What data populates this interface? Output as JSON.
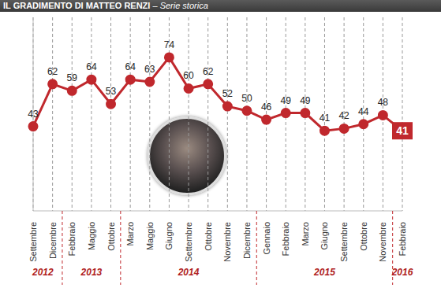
{
  "chart_data": {
    "type": "line",
    "title": "IL GRADIMENTO DI MATTEO RENZI",
    "subtitle": "– Serie storica",
    "categories": [
      "Settembre",
      "Dicembre",
      "Febbraio",
      "Maggio",
      "Ottobre",
      "Marzo",
      "Maggio",
      "Giugno",
      "Settembre",
      "Ottobre",
      "Novembre",
      "Dicembre",
      "Gennaio",
      "Febbraio",
      "Marzo",
      "Giugno",
      "Settembre",
      "Ottobre",
      "Novembre",
      "Febbraio"
    ],
    "values": [
      43,
      62,
      59,
      64,
      53,
      64,
      63,
      74,
      60,
      62,
      52,
      50,
      46,
      49,
      49,
      41,
      42,
      44,
      48,
      41
    ],
    "color": "#c0282d",
    "ylim": [
      5,
      92
    ],
    "grid": true,
    "data_labels": true,
    "tick_labels": "x",
    "marker": "circle",
    "line_style": "solid",
    "annotations": [
      {
        "text": "2012",
        "from": 0,
        "to": 1
      },
      {
        "text": "2013",
        "from": 2,
        "to": 4
      },
      {
        "text": "2014",
        "from": 5,
        "to": 11
      },
      {
        "text": "2015",
        "from": 12,
        "to": 18
      },
      {
        "text": "2016",
        "from": 19,
        "to": 19
      }
    ]
  }
}
